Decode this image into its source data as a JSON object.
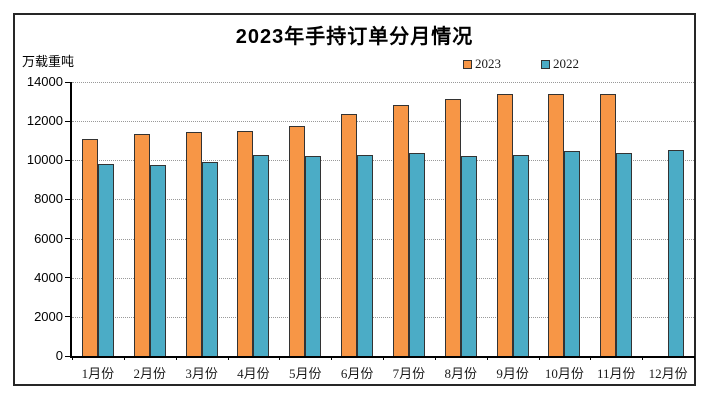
{
  "title": "2023年手持订单分月情况",
  "y_unit_label": "万载重吨",
  "colors": {
    "series_2023": "#F79646",
    "series_2022": "#4BACC6",
    "bar_border": "#333333",
    "gridline": "#999999",
    "axis": "#000000",
    "frame_border": "#262626",
    "background": "#ffffff"
  },
  "chart_data": {
    "type": "bar",
    "title": "2023年手持订单分月情况",
    "xlabel": "",
    "ylabel": "万载重吨",
    "categories": [
      "1月份",
      "2月份",
      "3月份",
      "4月份",
      "5月份",
      "6月份",
      "7月份",
      "8月份",
      "9月份",
      "10月份",
      "11月份",
      "12月份"
    ],
    "series": [
      {
        "name": "2023",
        "color": "#F79646",
        "values": [
          11100,
          11350,
          11450,
          11500,
          11750,
          12350,
          12800,
          13150,
          13400,
          13400,
          13400,
          null
        ]
      },
      {
        "name": "2022",
        "color": "#4BACC6",
        "values": [
          9800,
          9750,
          9900,
          10250,
          10200,
          10250,
          10350,
          10200,
          10250,
          10450,
          10350,
          10550
        ]
      }
    ],
    "ylim": [
      0,
      14000
    ],
    "ytick_step": 2000,
    "grid": true,
    "grid_style": "dotted",
    "legend_position": "top-right"
  }
}
